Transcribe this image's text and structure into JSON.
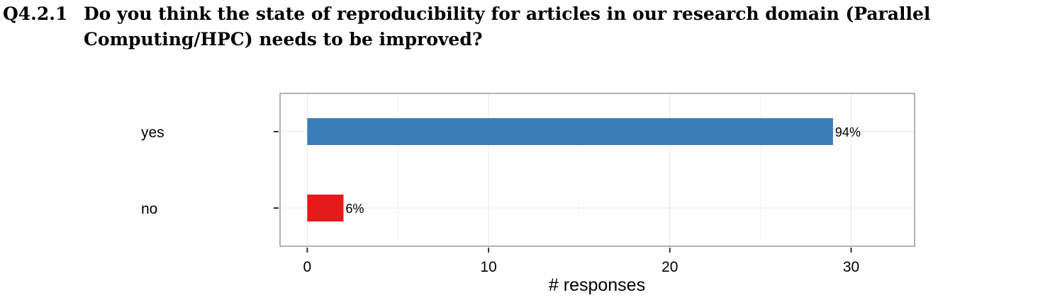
{
  "question": {
    "number": "Q4.2.1",
    "text": "Do you think the state of reproducibility for articles in our research domain (Parallel Computing/HPC) needs to be improved?"
  },
  "chart_data": {
    "type": "bar",
    "orientation": "horizontal",
    "categories": [
      "yes",
      "no"
    ],
    "values": [
      29,
      2
    ],
    "labels": [
      "94%",
      "6%"
    ],
    "colors": [
      "#3a7eb8",
      "#e41a1c"
    ],
    "xlabel": "# responses",
    "ylabel": "",
    "xlim": [
      -1.5,
      33.5
    ],
    "xticks": [
      0,
      10,
      20,
      30
    ],
    "grid": true,
    "legend": "none"
  }
}
